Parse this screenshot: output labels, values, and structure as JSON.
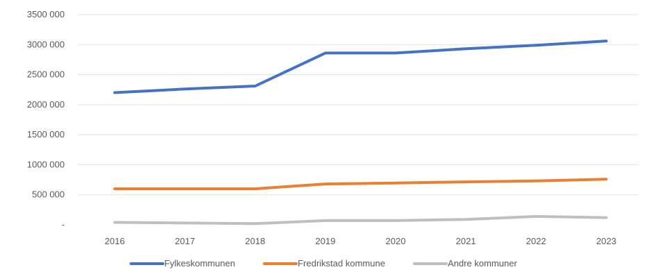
{
  "chart_data": {
    "type": "line",
    "title": "",
    "xlabel": "",
    "ylabel": "",
    "x": [
      2016,
      2017,
      2018,
      2019,
      2020,
      2021,
      2022,
      2023
    ],
    "x_tick_labels": [
      "2016",
      "2017",
      "2018",
      "2019",
      "2020",
      "2021",
      "2022",
      "2023"
    ],
    "ylim": [
      0,
      3500000
    ],
    "y_ticks": [
      0,
      500000,
      1000000,
      1500000,
      2000000,
      2500000,
      3000000,
      3500000
    ],
    "y_tick_labels": [
      "-",
      "500 000",
      "1000 000",
      "1500 000",
      "2000 000",
      "2500 000",
      "3000 000",
      "3500 000"
    ],
    "grid": true,
    "legend_position": "bottom",
    "series": [
      {
        "name": "Fylkeskommunen",
        "color": "#4472c4",
        "values": [
          2200000,
          2260000,
          2310000,
          2860000,
          2860000,
          2930000,
          2990000,
          3060000
        ]
      },
      {
        "name": "Fredrikstad kommune",
        "color": "#ed7d31",
        "values": [
          600000,
          600000,
          600000,
          680000,
          695000,
          715000,
          730000,
          760000
        ]
      },
      {
        "name": "Andre kommuner",
        "color": "#bfbfbf",
        "values": [
          40000,
          30000,
          20000,
          70000,
          70000,
          90000,
          140000,
          120000
        ]
      }
    ]
  }
}
